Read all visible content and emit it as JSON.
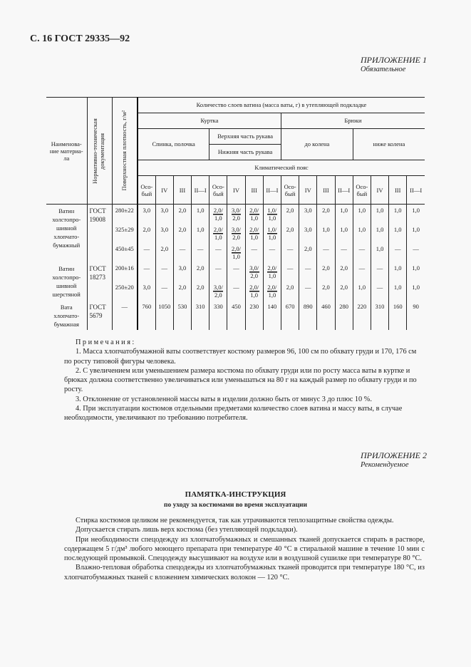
{
  "page_header": "С. 16 ГОСТ 29335—92",
  "appendix1": {
    "title": "ПРИЛОЖЕНИЕ 1",
    "subtitle": "Обязательное"
  },
  "table": {
    "col_name": "Наименова-ние материа-ла",
    "col_ntd": "Нормативно-техническая документация",
    "col_density": "Поверхностная плотность, г/м²",
    "header_layers": "Количество слоев ватина (масса ваты, г) в утепляющей подкладке",
    "header_jacket": "Куртка",
    "header_trousers": "Брюки",
    "header_back": "Спинка, полочка",
    "header_upper_sleeve": "Верхняя часть рукава",
    "header_lower_sleeve": "Нижняя часть рукава",
    "header_to_knee": "до колена",
    "header_below_knee": "ниже колена",
    "header_climate": "Климатический пояс",
    "climate_cols": [
      "Осо-бый",
      "IV",
      "III",
      "II—I",
      "Осо-бый",
      "IV",
      "III",
      "II—I",
      "Осо-бый",
      "IV",
      "III",
      "II—I",
      "Осо-бый",
      "IV",
      "III",
      "II—I"
    ],
    "materials": [
      {
        "name": "Ватин холстопро-шивной хлопчато-бумажный",
        "ntd": "ГОСТ 19008",
        "rows": [
          {
            "density": "280±22",
            "values": [
              "3,0",
              "3,0",
              "2,0",
              "1,0",
              "2,0/1,0",
              "3,0/2,0",
              "2,0/1,0",
              "1,0/1,0",
              "2,0",
              "3,0",
              "2,0",
              "1,0",
              "1,0",
              "1,0",
              "1,0",
              "1,0"
            ]
          },
          {
            "density": "325±29",
            "values": [
              "2,0",
              "3,0",
              "2,0",
              "1,0",
              "2,0/1,0",
              "3,0/2,0",
              "2,0/1,0",
              "1,0/1,0",
              "2,0",
              "3,0",
              "1,0",
              "1,0",
              "1,0",
              "1,0",
              "1,0",
              "1,0"
            ]
          },
          {
            "density": "450±45",
            "values": [
              "—",
              "2,0",
              "—",
              "—",
              "—",
              "2,0/1,0",
              "—",
              "—",
              "—",
              "2,0",
              "—",
              "—",
              "—",
              "1,0",
              "—",
              "—"
            ]
          }
        ]
      },
      {
        "name": "Ватин холстопро-шивной шерстяной",
        "ntd": "ГОСТ 18273",
        "rows": [
          {
            "density": "200±16",
            "values": [
              "—",
              "—",
              "3,0",
              "2,0",
              "—",
              "—",
              "3,0/2,0",
              "2,0/1,0",
              "—",
              "—",
              "2,0",
              "2,0",
              "—",
              "—",
              "1,0",
              "1,0"
            ]
          },
          {
            "density": "250±20",
            "values": [
              "3,0",
              "—",
              "2,0",
              "2,0",
              "3,0/2,0",
              "—",
              "2,0/1,0",
              "2,0/1,0",
              "2,0",
              "—",
              "2,0",
              "2,0",
              "1,0",
              "—",
              "1,0",
              "1,0"
            ]
          }
        ]
      },
      {
        "name": "Вата хлопчато-бумажная",
        "ntd": "ГОСТ 5679",
        "rows": [
          {
            "density": "—",
            "values": [
              "760",
              "1050",
              "530",
              "310",
              "330",
              "450",
              "230",
              "140",
              "670",
              "890",
              "460",
              "280",
              "220",
              "310",
              "160",
              "90"
            ]
          }
        ]
      }
    ]
  },
  "notes": {
    "heading": "Примечания:",
    "items": [
      "1. Масса хлопчатобумажной ваты соответствует костюму размеров 96, 100 см по обхвату груди и 170, 176 см по росту типовой фигуры человека.",
      "2. С увеличением или уменьшением размера костюма по обхвату груди или по росту масса ваты в куртке и брюках должна соответственно увеличиваться или уменьшаться на 80 г на каждый размер по обхвату груди и по росту.",
      "3. Отклонение от установленной массы ваты в изделии должно быть от минус 3 до плюс 10 %.",
      "4. При эксплуатации костюмов отдельными предметами количество слоев ватина и массу ваты, в случае необходимости, увеличивают по требованию потребителя."
    ]
  },
  "appendix2": {
    "title": "ПРИЛОЖЕНИЕ 2",
    "subtitle": "Рекомендуемое"
  },
  "memo": {
    "title": "ПАМЯТКА-ИНСТРУКЦИЯ",
    "subtitle": "по уходу за костюмами во время эксплуатации",
    "paragraphs": [
      "Стирка костюмов целиком не рекомендуется, так как утрачиваются теплозащитные свойства одежды.",
      "Допускается стирать лишь верх костюма (без утепляющей подкладки).",
      "При необходимости спецодежду из хлопчатобумажных и смешанных тканей допускается стирать в растворе, содержащем 5 г/дм³ любого моющего препарата при температуре 40 °С в стиральной машине в течение 10 мин с последующей промывкой. Спецодежду высушивают на воздухе или в воздушной сушилке при температуре 80 °С.",
      "Влажно-тепловая обработка спецодежды из хлопчатобумажных тканей проводится при температуре 180 °С, из хлопчатобумажных тканей с вложением химических волокон — 120 °С."
    ]
  }
}
